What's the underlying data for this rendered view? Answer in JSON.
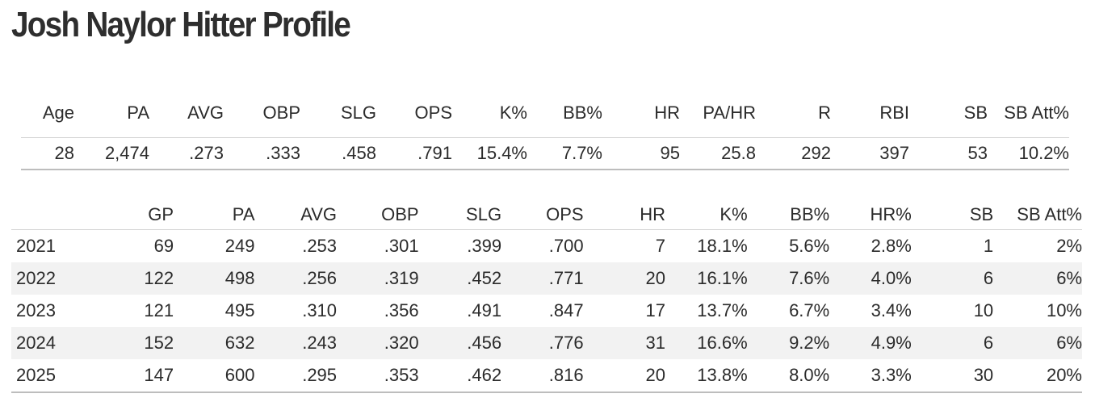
{
  "title": "Josh Naylor Hitter Profile",
  "career": {
    "headers": [
      "Age",
      "PA",
      "AVG",
      "OBP",
      "SLG",
      "OPS",
      "K%",
      "BB%",
      "HR",
      "PA/HR",
      "R",
      "RBI",
      "SB",
      "SB Att%"
    ],
    "values": [
      "28",
      "2,474",
      ".273",
      ".333",
      ".458",
      ".791",
      "15.4%",
      "7.7%",
      "95",
      "25.8",
      "292",
      "397",
      "53",
      "10.2%"
    ]
  },
  "seasons": {
    "headers": [
      "",
      "GP",
      "PA",
      "AVG",
      "OBP",
      "SLG",
      "OPS",
      "HR",
      "K%",
      "BB%",
      "HR%",
      "SB",
      "SB Att%"
    ],
    "rows": [
      [
        "2021",
        "69",
        "249",
        ".253",
        ".301",
        ".399",
        ".700",
        "7",
        "18.1%",
        "5.6%",
        "2.8%",
        "1",
        "2%"
      ],
      [
        "2022",
        "122",
        "498",
        ".256",
        ".319",
        ".452",
        ".771",
        "20",
        "16.1%",
        "7.6%",
        "4.0%",
        "6",
        "6%"
      ],
      [
        "2023",
        "121",
        "495",
        ".310",
        ".356",
        ".491",
        ".847",
        "17",
        "13.7%",
        "6.7%",
        "3.4%",
        "10",
        "10%"
      ],
      [
        "2024",
        "152",
        "632",
        ".243",
        ".320",
        ".456",
        ".776",
        "31",
        "16.6%",
        "9.2%",
        "4.9%",
        "6",
        "6%"
      ],
      [
        "2025",
        "147",
        "600",
        ".295",
        ".353",
        ".462",
        ".816",
        "20",
        "13.8%",
        "8.0%",
        "3.3%",
        "30",
        "20%"
      ]
    ]
  },
  "colors": {
    "text": "#2b2b2b",
    "row_alt_bg": "#f2f2f2",
    "rule": "#bdbdbd"
  }
}
